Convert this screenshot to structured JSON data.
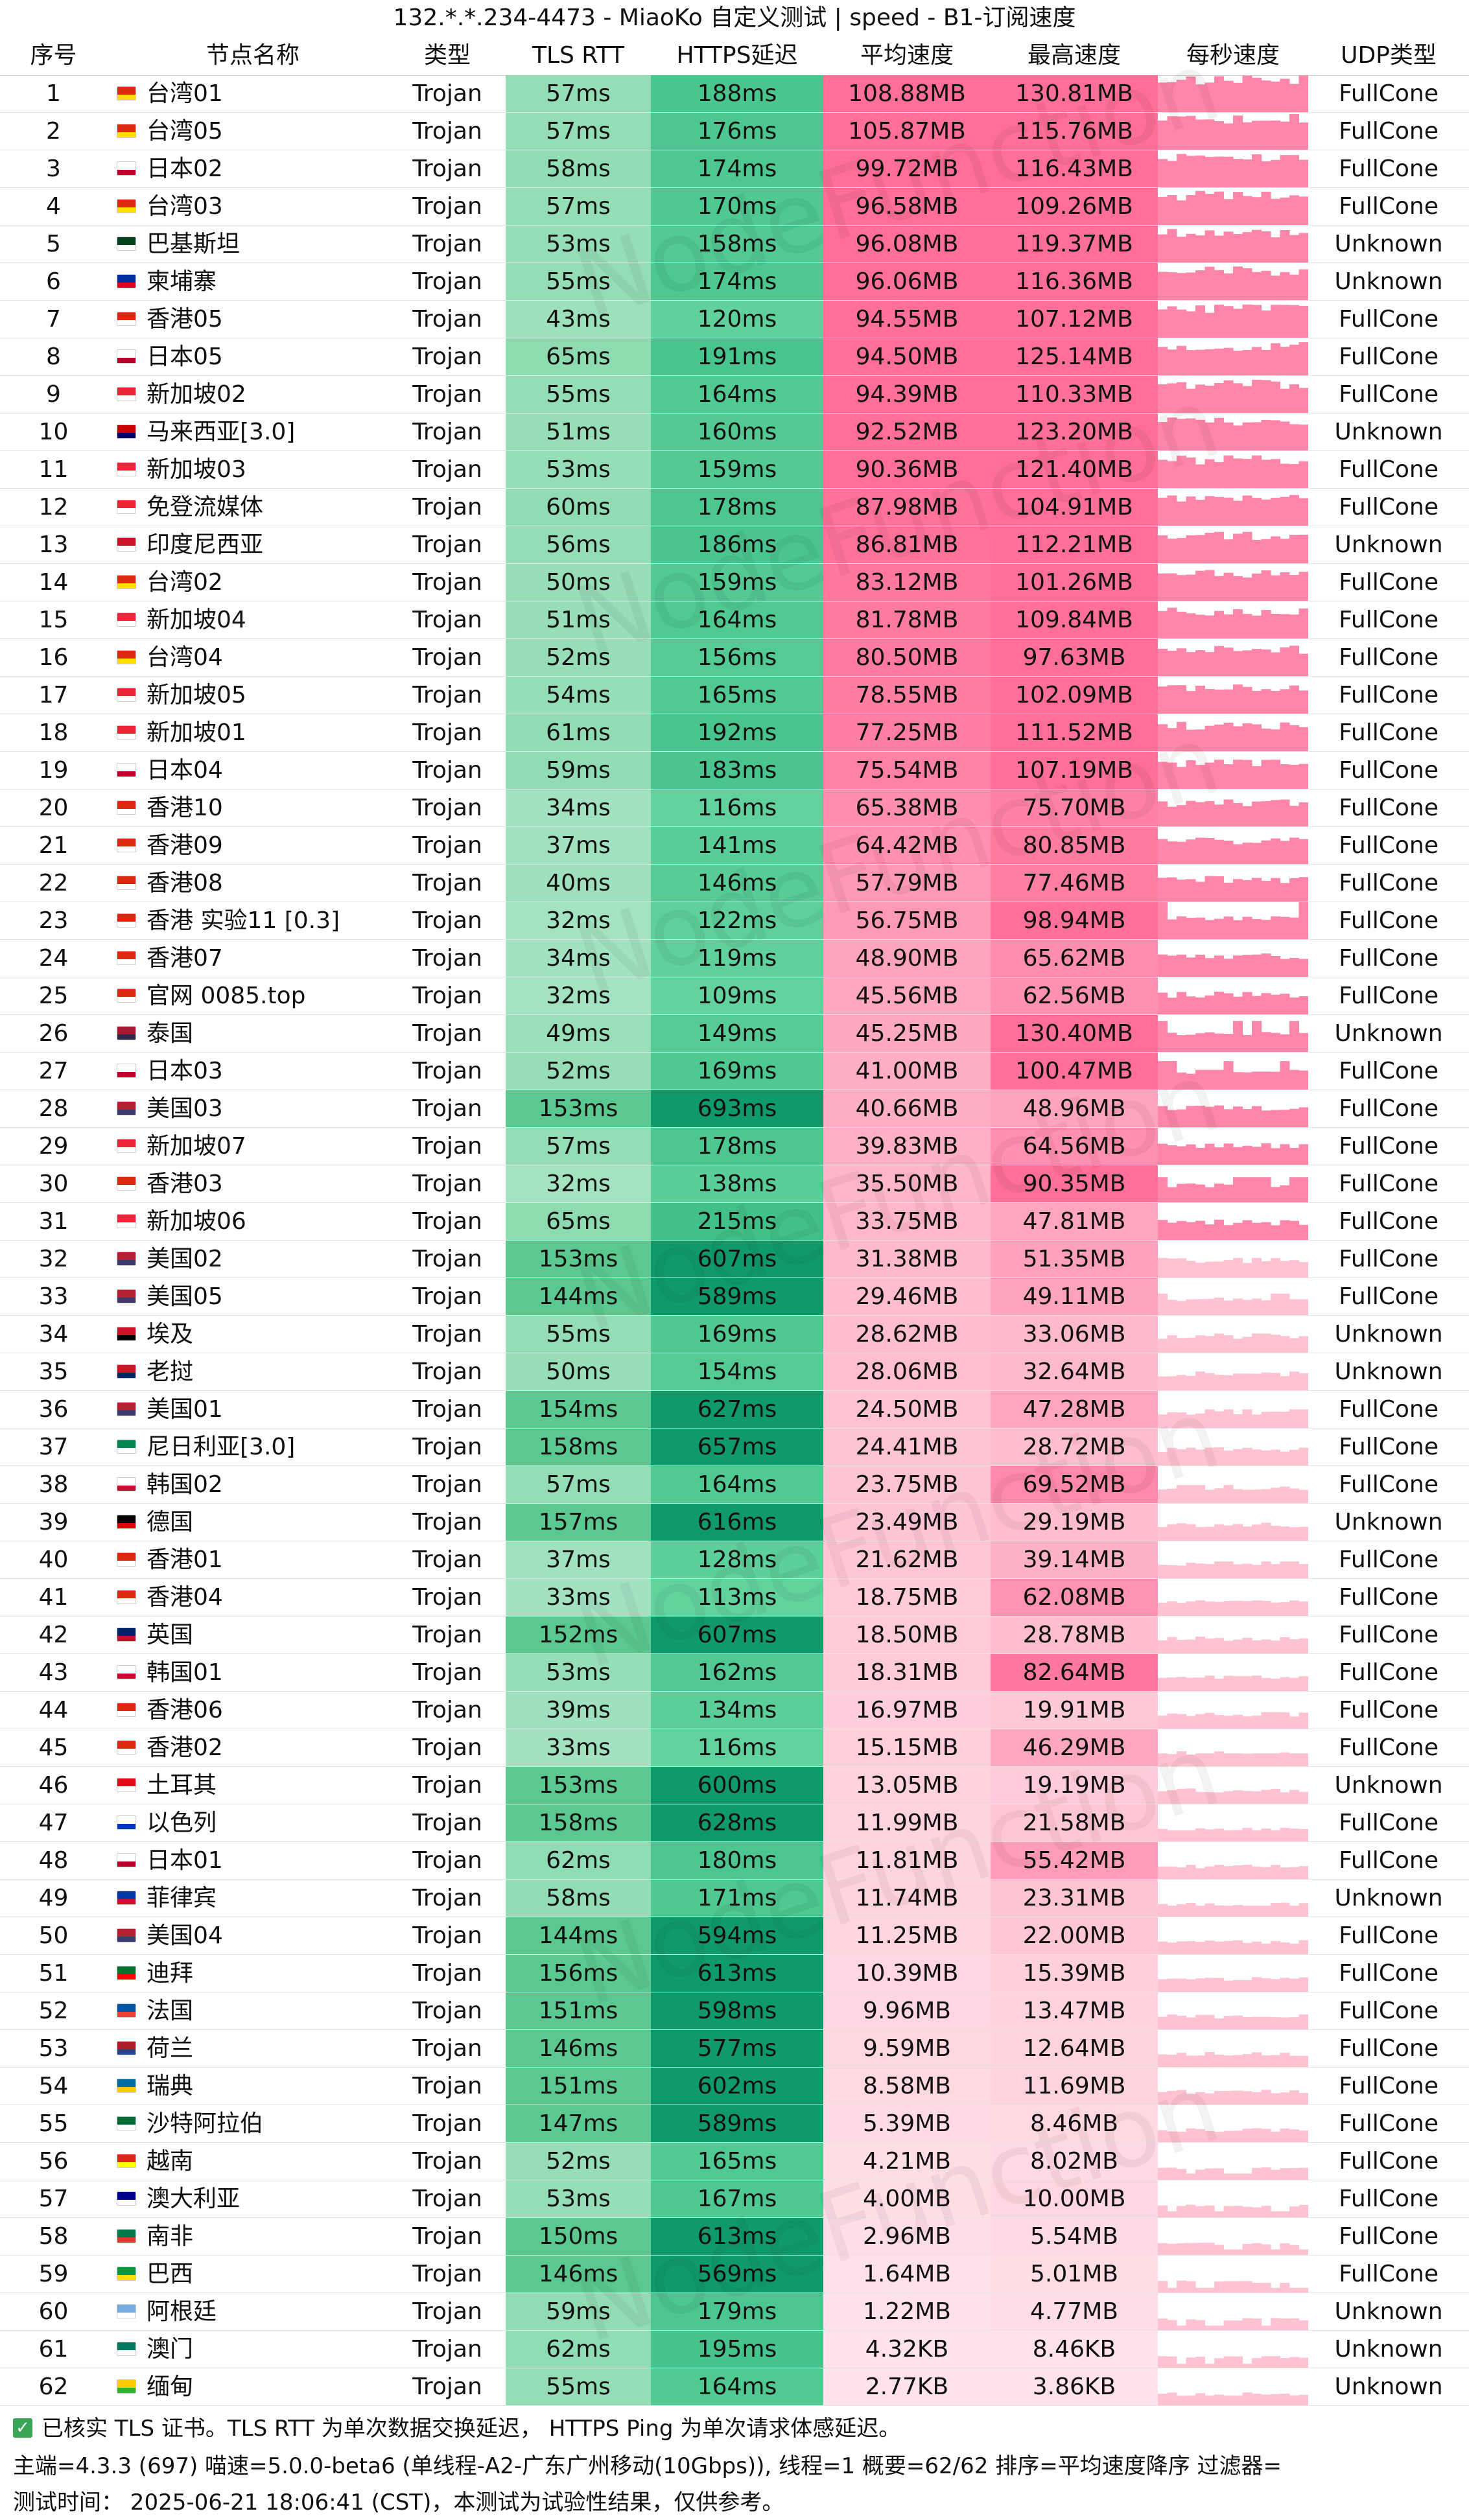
{
  "title": "132.*.*.234-4473 - MiaoKo 自定义测试 | speed - B1-订阅速度",
  "headers": {
    "idx": "序号",
    "name": "节点名称",
    "type": "类型",
    "tls": "TLS RTT",
    "https": "HTTPS延迟",
    "avg": "平均速度",
    "max": "最高速度",
    "persec": "每秒速度",
    "udp": "UDP类型"
  },
  "watermark": "NodeFunction",
  "colors": {
    "tls_light": "#a5e3c2",
    "tls_dark": "#5bc98f",
    "https_light": "#66d4a0",
    "https_dark": "#109a6a",
    "speed_high": "#ff6f98",
    "speed_low": "#ffe3ea",
    "spark": "#ff86a8",
    "spark_light": "#ffc2d3"
  },
  "rows": [
    {
      "idx": "1",
      "flag": "cn",
      "name": "台湾01",
      "type": "Trojan",
      "tls": "57ms",
      "https": "188ms",
      "avg": "108.88MB",
      "max": "130.81MB",
      "udp": "FullCone"
    },
    {
      "idx": "2",
      "flag": "cn",
      "name": "台湾05",
      "type": "Trojan",
      "tls": "57ms",
      "https": "176ms",
      "avg": "105.87MB",
      "max": "115.76MB",
      "udp": "FullCone"
    },
    {
      "idx": "3",
      "flag": "jp",
      "name": "日本02",
      "type": "Trojan",
      "tls": "58ms",
      "https": "174ms",
      "avg": "99.72MB",
      "max": "116.43MB",
      "udp": "FullCone"
    },
    {
      "idx": "4",
      "flag": "cn",
      "name": "台湾03",
      "type": "Trojan",
      "tls": "57ms",
      "https": "170ms",
      "avg": "96.58MB",
      "max": "109.26MB",
      "udp": "FullCone"
    },
    {
      "idx": "5",
      "flag": "pk",
      "name": "巴基斯坦",
      "type": "Trojan",
      "tls": "53ms",
      "https": "158ms",
      "avg": "96.08MB",
      "max": "119.37MB",
      "udp": "Unknown"
    },
    {
      "idx": "6",
      "flag": "kh",
      "name": "柬埔寨",
      "type": "Trojan",
      "tls": "55ms",
      "https": "174ms",
      "avg": "96.06MB",
      "max": "116.36MB",
      "udp": "Unknown"
    },
    {
      "idx": "7",
      "flag": "hk",
      "name": "香港05",
      "type": "Trojan",
      "tls": "43ms",
      "https": "120ms",
      "avg": "94.55MB",
      "max": "107.12MB",
      "udp": "FullCone"
    },
    {
      "idx": "8",
      "flag": "jp",
      "name": "日本05",
      "type": "Trojan",
      "tls": "65ms",
      "https": "191ms",
      "avg": "94.50MB",
      "max": "125.14MB",
      "udp": "FullCone"
    },
    {
      "idx": "9",
      "flag": "sg",
      "name": "新加坡02",
      "type": "Trojan",
      "tls": "55ms",
      "https": "164ms",
      "avg": "94.39MB",
      "max": "110.33MB",
      "udp": "FullCone"
    },
    {
      "idx": "10",
      "flag": "my",
      "name": "马来西亚[3.0]",
      "type": "Trojan",
      "tls": "51ms",
      "https": "160ms",
      "avg": "92.52MB",
      "max": "123.20MB",
      "udp": "Unknown"
    },
    {
      "idx": "11",
      "flag": "sg",
      "name": "新加坡03",
      "type": "Trojan",
      "tls": "53ms",
      "https": "159ms",
      "avg": "90.36MB",
      "max": "121.40MB",
      "udp": "FullCone"
    },
    {
      "idx": "12",
      "flag": "sg",
      "name": "免登流媒体",
      "type": "Trojan",
      "tls": "60ms",
      "https": "178ms",
      "avg": "87.98MB",
      "max": "104.91MB",
      "udp": "FullCone"
    },
    {
      "idx": "13",
      "flag": "id",
      "name": "印度尼西亚",
      "type": "Trojan",
      "tls": "56ms",
      "https": "186ms",
      "avg": "86.81MB",
      "max": "112.21MB",
      "udp": "Unknown"
    },
    {
      "idx": "14",
      "flag": "cn",
      "name": "台湾02",
      "type": "Trojan",
      "tls": "50ms",
      "https": "159ms",
      "avg": "83.12MB",
      "max": "101.26MB",
      "udp": "FullCone"
    },
    {
      "idx": "15",
      "flag": "sg",
      "name": "新加坡04",
      "type": "Trojan",
      "tls": "51ms",
      "https": "164ms",
      "avg": "81.78MB",
      "max": "109.84MB",
      "udp": "FullCone"
    },
    {
      "idx": "16",
      "flag": "cn",
      "name": "台湾04",
      "type": "Trojan",
      "tls": "52ms",
      "https": "156ms",
      "avg": "80.50MB",
      "max": "97.63MB",
      "udp": "FullCone"
    },
    {
      "idx": "17",
      "flag": "sg",
      "name": "新加坡05",
      "type": "Trojan",
      "tls": "54ms",
      "https": "165ms",
      "avg": "78.55MB",
      "max": "102.09MB",
      "udp": "FullCone"
    },
    {
      "idx": "18",
      "flag": "sg",
      "name": "新加坡01",
      "type": "Trojan",
      "tls": "61ms",
      "https": "192ms",
      "avg": "77.25MB",
      "max": "111.52MB",
      "udp": "FullCone"
    },
    {
      "idx": "19",
      "flag": "jp",
      "name": "日本04",
      "type": "Trojan",
      "tls": "59ms",
      "https": "183ms",
      "avg": "75.54MB",
      "max": "107.19MB",
      "udp": "FullCone"
    },
    {
      "idx": "20",
      "flag": "hk",
      "name": "香港10",
      "type": "Trojan",
      "tls": "34ms",
      "https": "116ms",
      "avg": "65.38MB",
      "max": "75.70MB",
      "udp": "FullCone"
    },
    {
      "idx": "21",
      "flag": "hk",
      "name": "香港09",
      "type": "Trojan",
      "tls": "37ms",
      "https": "141ms",
      "avg": "64.42MB",
      "max": "80.85MB",
      "udp": "FullCone"
    },
    {
      "idx": "22",
      "flag": "hk",
      "name": "香港08",
      "type": "Trojan",
      "tls": "40ms",
      "https": "146ms",
      "avg": "57.79MB",
      "max": "77.46MB",
      "udp": "FullCone"
    },
    {
      "idx": "23",
      "flag": "hk",
      "name": "香港 实验11 [0.3]",
      "type": "Trojan",
      "tls": "32ms",
      "https": "122ms",
      "avg": "56.75MB",
      "max": "98.94MB",
      "udp": "FullCone"
    },
    {
      "idx": "24",
      "flag": "hk",
      "name": "香港07",
      "type": "Trojan",
      "tls": "34ms",
      "https": "119ms",
      "avg": "48.90MB",
      "max": "65.62MB",
      "udp": "FullCone"
    },
    {
      "idx": "25",
      "flag": "hk",
      "name": "官网 0085.top",
      "type": "Trojan",
      "tls": "32ms",
      "https": "109ms",
      "avg": "45.56MB",
      "max": "62.56MB",
      "udp": "FullCone"
    },
    {
      "idx": "26",
      "flag": "th",
      "name": "泰国",
      "type": "Trojan",
      "tls": "49ms",
      "https": "149ms",
      "avg": "45.25MB",
      "max": "130.40MB",
      "udp": "Unknown"
    },
    {
      "idx": "27",
      "flag": "jp",
      "name": "日本03",
      "type": "Trojan",
      "tls": "52ms",
      "https": "169ms",
      "avg": "41.00MB",
      "max": "100.47MB",
      "udp": "FullCone"
    },
    {
      "idx": "28",
      "flag": "us",
      "name": "美国03",
      "type": "Trojan",
      "tls": "153ms",
      "https": "693ms",
      "avg": "40.66MB",
      "max": "48.96MB",
      "udp": "FullCone"
    },
    {
      "idx": "29",
      "flag": "sg",
      "name": "新加坡07",
      "type": "Trojan",
      "tls": "57ms",
      "https": "178ms",
      "avg": "39.83MB",
      "max": "64.56MB",
      "udp": "FullCone"
    },
    {
      "idx": "30",
      "flag": "hk",
      "name": "香港03",
      "type": "Trojan",
      "tls": "32ms",
      "https": "138ms",
      "avg": "35.50MB",
      "max": "90.35MB",
      "udp": "FullCone"
    },
    {
      "idx": "31",
      "flag": "sg",
      "name": "新加坡06",
      "type": "Trojan",
      "tls": "65ms",
      "https": "215ms",
      "avg": "33.75MB",
      "max": "47.81MB",
      "udp": "FullCone"
    },
    {
      "idx": "32",
      "flag": "us",
      "name": "美国02",
      "type": "Trojan",
      "tls": "153ms",
      "https": "607ms",
      "avg": "31.38MB",
      "max": "51.35MB",
      "udp": "FullCone"
    },
    {
      "idx": "33",
      "flag": "us",
      "name": "美国05",
      "type": "Trojan",
      "tls": "144ms",
      "https": "589ms",
      "avg": "29.46MB",
      "max": "49.11MB",
      "udp": "FullCone"
    },
    {
      "idx": "34",
      "flag": "eg",
      "name": "埃及",
      "type": "Trojan",
      "tls": "55ms",
      "https": "169ms",
      "avg": "28.62MB",
      "max": "33.06MB",
      "udp": "Unknown"
    },
    {
      "idx": "35",
      "flag": "la",
      "name": "老挝",
      "type": "Trojan",
      "tls": "50ms",
      "https": "154ms",
      "avg": "28.06MB",
      "max": "32.64MB",
      "udp": "Unknown"
    },
    {
      "idx": "36",
      "flag": "us",
      "name": "美国01",
      "type": "Trojan",
      "tls": "154ms",
      "https": "627ms",
      "avg": "24.50MB",
      "max": "47.28MB",
      "udp": "FullCone"
    },
    {
      "idx": "37",
      "flag": "ng",
      "name": "尼日利亚[3.0]",
      "type": "Trojan",
      "tls": "158ms",
      "https": "657ms",
      "avg": "24.41MB",
      "max": "28.72MB",
      "udp": "FullCone"
    },
    {
      "idx": "38",
      "flag": "kr",
      "name": "韩国02",
      "type": "Trojan",
      "tls": "57ms",
      "https": "164ms",
      "avg": "23.75MB",
      "max": "69.52MB",
      "udp": "FullCone"
    },
    {
      "idx": "39",
      "flag": "de",
      "name": "德国",
      "type": "Trojan",
      "tls": "157ms",
      "https": "616ms",
      "avg": "23.49MB",
      "max": "29.19MB",
      "udp": "Unknown"
    },
    {
      "idx": "40",
      "flag": "hk",
      "name": "香港01",
      "type": "Trojan",
      "tls": "37ms",
      "https": "128ms",
      "avg": "21.62MB",
      "max": "39.14MB",
      "udp": "FullCone"
    },
    {
      "idx": "41",
      "flag": "hk",
      "name": "香港04",
      "type": "Trojan",
      "tls": "33ms",
      "https": "113ms",
      "avg": "18.75MB",
      "max": "62.08MB",
      "udp": "FullCone"
    },
    {
      "idx": "42",
      "flag": "gb",
      "name": "英国",
      "type": "Trojan",
      "tls": "152ms",
      "https": "607ms",
      "avg": "18.50MB",
      "max": "28.78MB",
      "udp": "FullCone"
    },
    {
      "idx": "43",
      "flag": "kr",
      "name": "韩国01",
      "type": "Trojan",
      "tls": "53ms",
      "https": "162ms",
      "avg": "18.31MB",
      "max": "82.64MB",
      "udp": "FullCone"
    },
    {
      "idx": "44",
      "flag": "hk",
      "name": "香港06",
      "type": "Trojan",
      "tls": "39ms",
      "https": "134ms",
      "avg": "16.97MB",
      "max": "19.91MB",
      "udp": "FullCone"
    },
    {
      "idx": "45",
      "flag": "hk",
      "name": "香港02",
      "type": "Trojan",
      "tls": "33ms",
      "https": "116ms",
      "avg": "15.15MB",
      "max": "46.29MB",
      "udp": "FullCone"
    },
    {
      "idx": "46",
      "flag": "tr",
      "name": "土耳其",
      "type": "Trojan",
      "tls": "153ms",
      "https": "600ms",
      "avg": "13.05MB",
      "max": "19.19MB",
      "udp": "Unknown"
    },
    {
      "idx": "47",
      "flag": "il",
      "name": "以色列",
      "type": "Trojan",
      "tls": "158ms",
      "https": "628ms",
      "avg": "11.99MB",
      "max": "21.58MB",
      "udp": "FullCone"
    },
    {
      "idx": "48",
      "flag": "jp",
      "name": "日本01",
      "type": "Trojan",
      "tls": "62ms",
      "https": "180ms",
      "avg": "11.81MB",
      "max": "55.42MB",
      "udp": "FullCone"
    },
    {
      "idx": "49",
      "flag": "ph",
      "name": "菲律宾",
      "type": "Trojan",
      "tls": "58ms",
      "https": "171ms",
      "avg": "11.74MB",
      "max": "23.31MB",
      "udp": "Unknown"
    },
    {
      "idx": "50",
      "flag": "us",
      "name": "美国04",
      "type": "Trojan",
      "tls": "144ms",
      "https": "594ms",
      "avg": "11.25MB",
      "max": "22.00MB",
      "udp": "FullCone"
    },
    {
      "idx": "51",
      "flag": "ae",
      "name": "迪拜",
      "type": "Trojan",
      "tls": "156ms",
      "https": "613ms",
      "avg": "10.39MB",
      "max": "15.39MB",
      "udp": "FullCone"
    },
    {
      "idx": "52",
      "flag": "fr",
      "name": "法国",
      "type": "Trojan",
      "tls": "151ms",
      "https": "598ms",
      "avg": "9.96MB",
      "max": "13.47MB",
      "udp": "FullCone"
    },
    {
      "idx": "53",
      "flag": "nl",
      "name": "荷兰",
      "type": "Trojan",
      "tls": "146ms",
      "https": "577ms",
      "avg": "9.59MB",
      "max": "12.64MB",
      "udp": "FullCone"
    },
    {
      "idx": "54",
      "flag": "se",
      "name": "瑞典",
      "type": "Trojan",
      "tls": "151ms",
      "https": "602ms",
      "avg": "8.58MB",
      "max": "11.69MB",
      "udp": "FullCone"
    },
    {
      "idx": "55",
      "flag": "sa",
      "name": "沙特阿拉伯",
      "type": "Trojan",
      "tls": "147ms",
      "https": "589ms",
      "avg": "5.39MB",
      "max": "8.46MB",
      "udp": "FullCone"
    },
    {
      "idx": "56",
      "flag": "vn",
      "name": "越南",
      "type": "Trojan",
      "tls": "52ms",
      "https": "165ms",
      "avg": "4.21MB",
      "max": "8.02MB",
      "udp": "FullCone"
    },
    {
      "idx": "57",
      "flag": "au",
      "name": "澳大利亚",
      "type": "Trojan",
      "tls": "53ms",
      "https": "167ms",
      "avg": "4.00MB",
      "max": "10.00MB",
      "udp": "FullCone"
    },
    {
      "idx": "58",
      "flag": "za",
      "name": "南非",
      "type": "Trojan",
      "tls": "150ms",
      "https": "613ms",
      "avg": "2.96MB",
      "max": "5.54MB",
      "udp": "FullCone"
    },
    {
      "idx": "59",
      "flag": "br",
      "name": "巴西",
      "type": "Trojan",
      "tls": "146ms",
      "https": "569ms",
      "avg": "1.64MB",
      "max": "5.01MB",
      "udp": "FullCone"
    },
    {
      "idx": "60",
      "flag": "ar",
      "name": "阿根廷",
      "type": "Trojan",
      "tls": "59ms",
      "https": "179ms",
      "avg": "1.22MB",
      "max": "4.77MB",
      "udp": "Unknown"
    },
    {
      "idx": "61",
      "flag": "mo",
      "name": "澳门",
      "type": "Trojan",
      "tls": "62ms",
      "https": "195ms",
      "avg": "4.32KB",
      "max": "8.46KB",
      "udp": "Unknown"
    },
    {
      "idx": "62",
      "flag": "mm",
      "name": "缅甸",
      "type": "Trojan",
      "tls": "55ms",
      "https": "164ms",
      "avg": "2.77KB",
      "max": "3.86KB",
      "udp": "Unknown"
    }
  ],
  "footer": {
    "line1": "已核实 TLS 证书。TLS RTT 为单次数据交换延迟， HTTPS Ping 为单次请求体感延迟。",
    "line2": "主端=4.3.3 (697) 喵速=5.0.0-beta6 (单线程-A2-广东广州移动(10Gbps)), 线程=1 概要=62/62 排序=平均速度降序 过滤器=",
    "line3": "测试时间： 2025-06-21 18:06:41 (CST)，本测试为试验性结果，仅供参考。"
  },
  "flag_colors": {
    "cn": [
      "#de2910",
      "#ffde00"
    ],
    "jp": [
      "#ffffff",
      "#bc002d"
    ],
    "pk": [
      "#01411c",
      "#ffffff"
    ],
    "kh": [
      "#032ea1",
      "#e00025"
    ],
    "hk": [
      "#de2910",
      "#ffffff"
    ],
    "sg": [
      "#ee2536",
      "#ffffff"
    ],
    "my": [
      "#cc0001",
      "#010066"
    ],
    "id": [
      "#ce1126",
      "#ffffff"
    ],
    "th": [
      "#a51931",
      "#2d2a4a"
    ],
    "us": [
      "#b22234",
      "#3c3b6e"
    ],
    "eg": [
      "#ce1126",
      "#000000"
    ],
    "la": [
      "#ce1126",
      "#002868"
    ],
    "ng": [
      "#008751",
      "#ffffff"
    ],
    "kr": [
      "#ffffff",
      "#c60c30"
    ],
    "de": [
      "#000000",
      "#dd0000"
    ],
    "gb": [
      "#012169",
      "#c8102e"
    ],
    "tr": [
      "#e30a17",
      "#ffffff"
    ],
    "il": [
      "#ffffff",
      "#0038b8"
    ],
    "ph": [
      "#0038a8",
      "#ce1126"
    ],
    "ae": [
      "#00732f",
      "#ff0000"
    ],
    "fr": [
      "#0055a4",
      "#ef4135"
    ],
    "nl": [
      "#ae1c28",
      "#21468b"
    ],
    "se": [
      "#006aa7",
      "#fecc00"
    ],
    "sa": [
      "#006c35",
      "#ffffff"
    ],
    "vn": [
      "#da251d",
      "#ffff00"
    ],
    "au": [
      "#00008b",
      "#ffffff"
    ],
    "za": [
      "#007a4d",
      "#de3831"
    ],
    "br": [
      "#009c3b",
      "#ffdf00"
    ],
    "ar": [
      "#74acdf",
      "#ffffff"
    ],
    "mo": [
      "#00785e",
      "#ffffff"
    ],
    "mm": [
      "#fecb00",
      "#34b233"
    ]
  }
}
